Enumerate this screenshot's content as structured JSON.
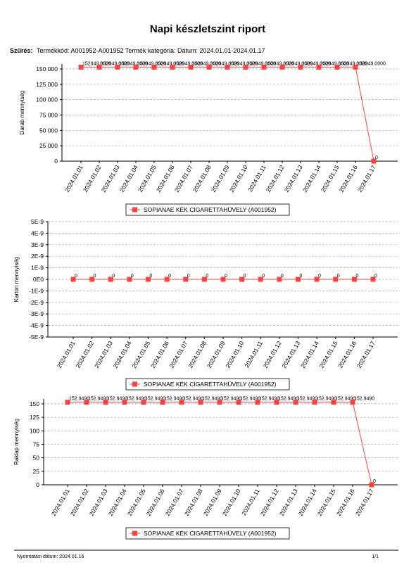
{
  "header": {
    "title": "Napi készletszint riport",
    "filter_label": "Szűrés:",
    "filter_text": "Termékkód: A001952-A001952 Termék kategória:  Dátum: 2024.01.01-2024.01.17"
  },
  "chart_data": [
    {
      "type": "line",
      "ylabel": "Darab mennyiség",
      "categories": [
        "2024.01.01",
        "2024.01.02",
        "2024.01.03",
        "2024.01.04",
        "2024.01.05",
        "2024.01.06",
        "2024.01.07",
        "2024.01.08",
        "2024.01.09",
        "2024.01.10",
        "2024.01.11",
        "2024.01.12",
        "2024.01.13",
        "2024.01.14",
        "2024.01.15",
        "2024.01.16",
        "2024.01.17"
      ],
      "series": [
        {
          "name": "SOPIANAE KÉK CIGARETTAHÜVELY (A001952)",
          "color": "#ff4040",
          "values": [
            152949,
            152949,
            152949,
            152949,
            152949,
            152949,
            152949,
            152949,
            152949,
            152949,
            152949,
            152949,
            152949,
            152949,
            152949,
            152949,
            0
          ],
          "value_labels": [
            "152949.0000",
            "152949.0000",
            "152949.0000",
            "152949.0000",
            "152949.0000",
            "152949.0000",
            "152949.0000",
            "152949.0000",
            "152949.0000",
            "152949.0000",
            "152949.0000",
            "152949.0000",
            "152949.0000",
            "152949.0000",
            "152949.0000",
            "152949.0000",
            "0"
          ]
        }
      ],
      "ylim": [
        0,
        158000
      ],
      "yticks": [
        0,
        {
          "value": 25000,
          "label": "25 000"
        },
        {
          "value": 50000,
          "label": "50 000"
        },
        {
          "value": 75000,
          "label": "75 000"
        },
        {
          "value": 100000,
          "label": "100 000"
        },
        {
          "value": 125000,
          "label": "125 000"
        },
        {
          "value": 150000,
          "label": "150 000"
        }
      ],
      "grid": true
    },
    {
      "type": "line",
      "ylabel": "Karton mennyiség",
      "categories": [
        "2024.01.01",
        "2024.01.02",
        "2024.01.03",
        "2024.01.04",
        "2024.01.05",
        "2024.01.06",
        "2024.01.07",
        "2024.01.08",
        "2024.01.09",
        "2024.01.10",
        "2024.01.11",
        "2024.01.12",
        "2024.01.13",
        "2024.01.14",
        "2024.01.15",
        "2024.01.16",
        "2024.01.17"
      ],
      "series": [
        {
          "name": "SOPIANAE KÉK CIGARETTAHÜVELY (A001952)",
          "color": "#ff4040",
          "values": [
            0,
            0,
            0,
            0,
            0,
            0,
            0,
            0,
            0,
            0,
            0,
            0,
            0,
            0,
            0,
            0,
            0
          ]
        }
      ],
      "ylim": [
        -5e-09,
        5e-09
      ],
      "yticks": [
        {
          "value": -5e-09,
          "label": "-5E-9"
        },
        {
          "value": -4e-09,
          "label": "-4E-9"
        },
        {
          "value": -3e-09,
          "label": "-3E-9"
        },
        {
          "value": -2e-09,
          "label": "-2E-9"
        },
        {
          "value": -1e-09,
          "label": "-1E-9"
        },
        {
          "value": 0,
          "label": "0E0"
        },
        {
          "value": 1e-09,
          "label": "1E-9"
        },
        {
          "value": 2e-09,
          "label": "2E-9"
        },
        {
          "value": 3e-09,
          "label": "3E-9"
        },
        {
          "value": 4e-09,
          "label": "4E-9"
        },
        {
          "value": 5e-09,
          "label": "5E-9"
        }
      ],
      "grid": true
    },
    {
      "type": "line",
      "ylabel": "Raklap mennyiség",
      "categories": [
        "2024.01.01",
        "2024.01.02",
        "2024.01.03",
        "2024.01.04",
        "2024.01.05",
        "2024.01.06",
        "2024.01.07",
        "2024.01.08",
        "2024.01.09",
        "2024.01.10",
        "2024.01.11",
        "2024.01.12",
        "2024.01.13",
        "2024.01.14",
        "2024.01.15",
        "2024.01.16",
        "2024.01.17"
      ],
      "series": [
        {
          "name": "SOPIANAE KÉK CIGARETTAHÜVELY (A001952)",
          "color": "#ff4040",
          "values": [
            152.949,
            152.949,
            152.949,
            152.949,
            152.949,
            152.949,
            152.949,
            152.949,
            152.949,
            152.949,
            152.949,
            152.949,
            152.949,
            152.949,
            152.949,
            152.949,
            0
          ],
          "value_labels": [
            "152.9490",
            "152.9490",
            "152.9490",
            "152.9490",
            "152.9490",
            "152.9490",
            "152.9490",
            "152.9490",
            "152.9490",
            "152.9490",
            "152.9490",
            "152.9490",
            "152.9490",
            "152.9490",
            "152.9490",
            "152.9490",
            "0"
          ]
        }
      ],
      "ylim": [
        0,
        159
      ],
      "yticks": [
        0,
        25,
        50,
        75,
        100,
        125,
        150
      ],
      "grid": true
    }
  ],
  "footer": {
    "print_date": "Nyomtatási dátum: 2024.01.16",
    "page": "1/1"
  }
}
